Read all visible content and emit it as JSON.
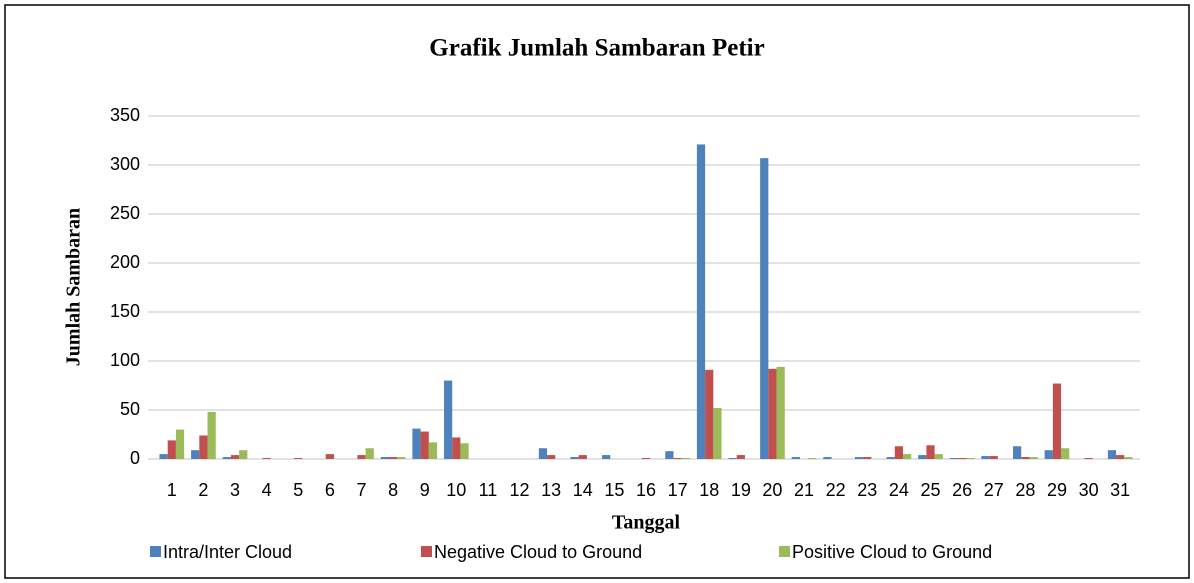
{
  "chart_data": {
    "type": "bar",
    "title": "Grafik Jumlah Sambaran Petir",
    "x_label": "Tanggal",
    "y_label": "Jumlah Sambaran",
    "categories": [
      "1",
      "2",
      "3",
      "4",
      "5",
      "6",
      "7",
      "8",
      "9",
      "10",
      "11",
      "12",
      "13",
      "14",
      "15",
      "16",
      "17",
      "18",
      "19",
      "20",
      "21",
      "22",
      "23",
      "24",
      "25",
      "26",
      "27",
      "28",
      "29",
      "30",
      "31"
    ],
    "series": [
      {
        "name": "Intra/Inter Cloud",
        "color": "#4f81bd",
        "values": [
          5,
          9,
          2,
          0,
          0,
          0,
          0,
          2,
          31,
          80,
          0,
          0,
          11,
          2,
          4,
          0,
          8,
          321,
          1,
          307,
          2,
          2,
          2,
          2,
          4,
          1,
          3,
          13,
          9,
          0,
          9
        ]
      },
      {
        "name": "Negative Cloud to Ground",
        "color": "#c0504d",
        "values": [
          19,
          24,
          4,
          1,
          1,
          5,
          4,
          2,
          28,
          22,
          0,
          0,
          4,
          4,
          0,
          1,
          1,
          91,
          4,
          92,
          0,
          0,
          2,
          13,
          14,
          1,
          3,
          2,
          77,
          1,
          4
        ]
      },
      {
        "name": "Positive Cloud to Ground",
        "color": "#9bbb59",
        "values": [
          30,
          48,
          9,
          0,
          0,
          0,
          11,
          2,
          17,
          16,
          0,
          0,
          0,
          0,
          0,
          0,
          1,
          52,
          0,
          94,
          1,
          0,
          0,
          5,
          5,
          1,
          0,
          2,
          11,
          0,
          2
        ]
      }
    ],
    "ylim": [
      0,
      350
    ],
    "yticks": [
      0,
      50,
      100,
      150,
      200,
      250,
      300,
      350
    ],
    "grid": true,
    "legend": "bottom"
  }
}
